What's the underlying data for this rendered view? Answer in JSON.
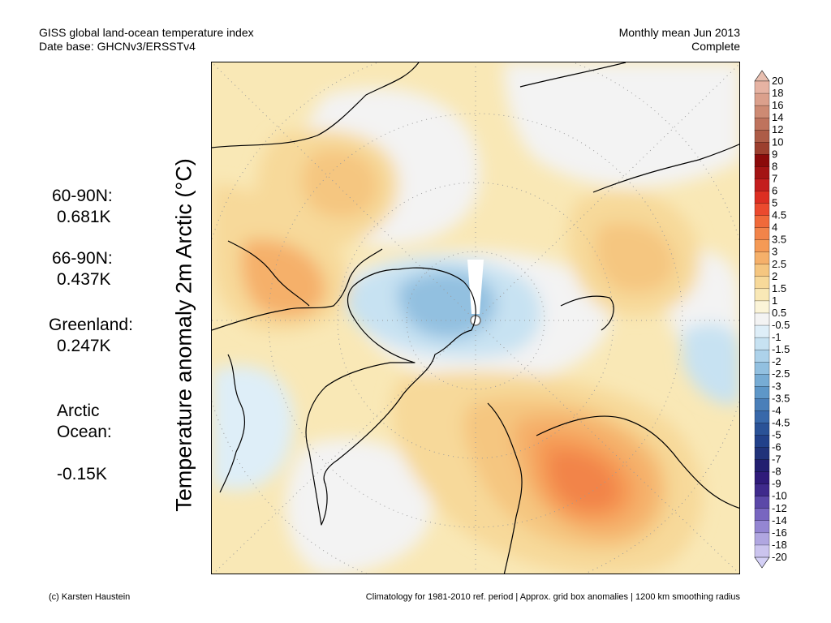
{
  "header": {
    "title_line1": "GISS global land-ocean temperature index",
    "title_line2": "Date base: GHCNv3/ERSSTv4",
    "period_line1": "Monthly mean Jun 2013",
    "period_line2": "Complete"
  },
  "y_axis_label": "Temperature anomaly 2m Arctic (°C)",
  "stats": [
    {
      "label": "60-90N:",
      "value": "0.681K"
    },
    {
      "label": "66-90N:",
      "value": "0.437K"
    },
    {
      "label": "Greenland:",
      "value": "0.247K"
    },
    {
      "label": "Arctic\nOcean:",
      "value": "-0.15K"
    }
  ],
  "colorbar": {
    "labels": [
      "20",
      "18",
      "16",
      "14",
      "12",
      "10",
      "9",
      "8",
      "7",
      "6",
      "5",
      "4.5",
      "4",
      "3.5",
      "3",
      "2.5",
      "2",
      "1.5",
      "1",
      "0.5",
      "-0.5",
      "-1",
      "-1.5",
      "-2",
      "-2.5",
      "-3",
      "-3.5",
      "-4",
      "-4.5",
      "-5",
      "-6",
      "-7",
      "-8",
      "-9",
      "-10",
      "-12",
      "-14",
      "-16",
      "-18",
      "-20"
    ],
    "colors": [
      "#e6b3a3",
      "#dba08c",
      "#cd8a73",
      "#bf735d",
      "#ad5c47",
      "#9c3f2e",
      "#8b0a0a",
      "#a31414",
      "#c41e1e",
      "#dc2e22",
      "#eb4a2e",
      "#f06a3a",
      "#f2844a",
      "#f59a55",
      "#f5b06a",
      "#f5c680",
      "#f7d99a",
      "#f9e8b6",
      "#fbf4d8",
      "#f3f3f3",
      "#deeef8",
      "#c7e2f2",
      "#add2ea",
      "#92c0e0",
      "#77acd4",
      "#5e97c8",
      "#4a7fb9",
      "#3868aa",
      "#2a5297",
      "#22418a",
      "#21337a",
      "#221f70",
      "#2f1b7a",
      "#3f2a8c",
      "#5b48a8",
      "#7866c0",
      "#9486d2",
      "#b0a6e0",
      "#cbc4ee"
    ],
    "top_arrow_color": "#e8bfb0",
    "bottom_arrow_color": "#d4d0f6"
  },
  "footer": {
    "credit": "(c) Karsten Haustein",
    "note": "Climatology for 1981-2010 ref. period | Approx. grid box anomalies | 1200 km smoothing radius"
  }
}
